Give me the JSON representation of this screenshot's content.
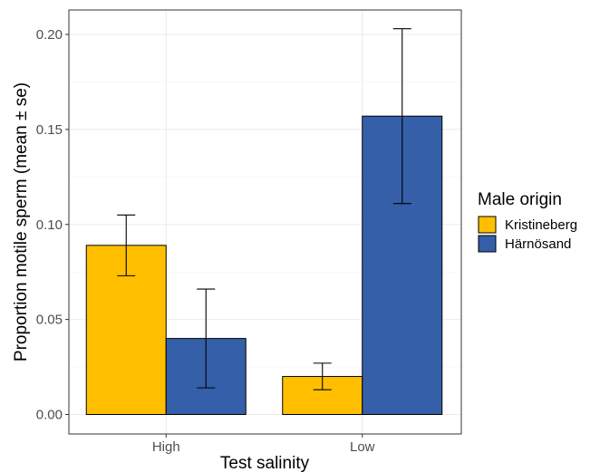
{
  "chart_data": {
    "type": "bar",
    "title": "",
    "xlabel": "Test salinity",
    "ylabel": "Proportion motile sperm (mean ± se)",
    "categories": [
      "High",
      "Low"
    ],
    "ylim": [
      0,
      0.215
    ],
    "yticks": [
      0.0,
      0.05,
      0.1,
      0.15,
      0.2
    ],
    "ytick_labels": [
      "0.00",
      "0.05",
      "0.10",
      "0.15",
      "0.20"
    ],
    "grid": true,
    "legend": {
      "title": "Male origin",
      "placement": "right"
    },
    "series": [
      {
        "name": "Kristineberg",
        "color": "#FFBF00",
        "values": [
          0.089,
          0.02
        ],
        "error_low": [
          0.073,
          0.013
        ],
        "error_high": [
          0.105,
          0.027
        ]
      },
      {
        "name": "Härnösand",
        "color": "#355FA8",
        "values": [
          0.04,
          0.157
        ],
        "error_low": [
          0.014,
          0.111
        ],
        "error_high": [
          0.066,
          0.203
        ]
      }
    ]
  }
}
